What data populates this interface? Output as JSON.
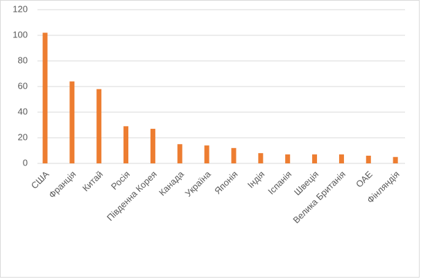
{
  "chart_data": {
    "type": "bar",
    "categories": [
      "США",
      "Франція",
      "Китай",
      "Росія",
      "Південна Корея",
      "Канада",
      "Україна",
      "Японія",
      "Індія",
      "Іспанія",
      "Швеція",
      "Велика Британія",
      "ОАЕ",
      "Фінляндія"
    ],
    "values": [
      102,
      64,
      58,
      29,
      27,
      15,
      14,
      12,
      8,
      7,
      7,
      7,
      6,
      5
    ],
    "color": "#ed7d31",
    "ylim": [
      0,
      120
    ],
    "yticks": [
      0,
      20,
      40,
      60,
      80,
      100,
      120
    ],
    "grid": true
  }
}
